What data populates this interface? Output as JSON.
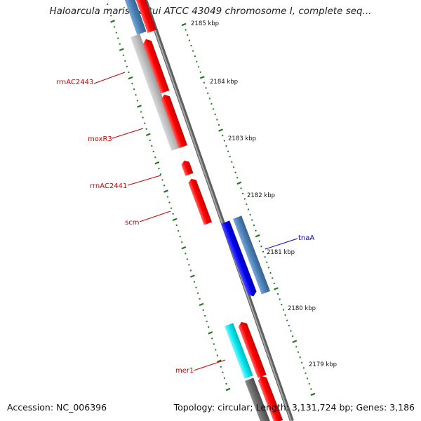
{
  "title": "Haloarcula marismortui ATCC 43049 chromosome I, complete seq...",
  "accession": "Accession: NC_006396",
  "topology": "Topology: circular; Length: 3,131,724 bp; Genes: 3,186",
  "colors": {
    "backbone": "#808080",
    "tick": "#1f7a1f",
    "label_red": "#cc0000",
    "label_blue": "#0000cc",
    "gene_red": "#ff0000",
    "gene_blue": "#0000ee",
    "gene_steelblue": "#4a7fb5",
    "gene_gray": "#bdbdbd",
    "gene_cyan": "#00e5ee",
    "gene_darkgray": "#666666"
  },
  "scale_labels": [
    "2185 kbp",
    "2184 kbp",
    "2183 kbp",
    "2182 kbp",
    "2181 kbp",
    "2180 kbp",
    "2179 kbp"
  ],
  "gene_labels": [
    "rrnAC2443",
    "moxR3",
    "rrnAC2441",
    "scm",
    "tnaA",
    "mer1"
  ]
}
